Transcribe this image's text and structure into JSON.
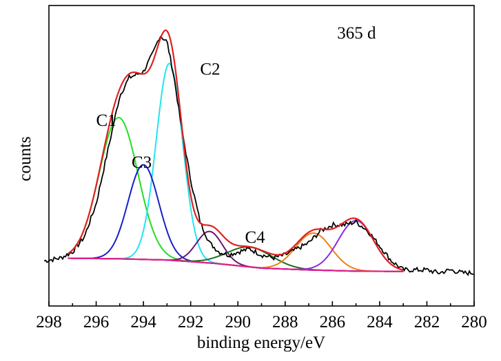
{
  "chart_data": {
    "type": "line",
    "title": "",
    "xlabel": "binding energy/eV",
    "ylabel": "counts",
    "xlim": [
      298,
      280
    ],
    "x_reversed": true,
    "ylim": [
      0,
      100
    ],
    "grid": false,
    "legend": "none",
    "x_ticks": [
      298,
      296,
      294,
      292,
      290,
      288,
      286,
      284,
      282,
      280
    ],
    "x_tick_labels": [
      "298",
      "296",
      "294",
      "292",
      "290",
      "288",
      "286",
      "284",
      "282",
      "280"
    ],
    "annotations": [
      {
        "text": "365 d",
        "x": 285.8,
        "y": 89
      },
      {
        "text": "C1",
        "x": 296.0,
        "y": 60
      },
      {
        "text": "C2",
        "x": 291.6,
        "y": 77
      },
      {
        "text": "C3",
        "x": 294.5,
        "y": 46
      },
      {
        "text": "C4",
        "x": 289.7,
        "y": 21
      }
    ],
    "background_line": {
      "color": "#e0208a",
      "points": [
        [
          297.2,
          15.9
        ],
        [
          295,
          15.7
        ],
        [
          293,
          15.3
        ],
        [
          291,
          14.2
        ],
        [
          289,
          12.6
        ],
        [
          287,
          12.0
        ],
        [
          285,
          11.6
        ],
        [
          283,
          11.5
        ]
      ]
    },
    "peaks": [
      {
        "name": "C1",
        "center": 295.05,
        "height": 47,
        "sigma": 0.82,
        "color": "#22dd22"
      },
      {
        "name": "C2",
        "center": 292.9,
        "height": 65.5,
        "sigma": 0.56,
        "color": "#22e4ee"
      },
      {
        "name": "C3",
        "center": 294.0,
        "height": 31.5,
        "sigma": 0.65,
        "color": "#1520c8"
      },
      {
        "name": "",
        "center": 291.2,
        "height": 10.5,
        "sigma": 0.55,
        "color": "#6a1470"
      },
      {
        "name": "C4",
        "center": 289.5,
        "height": 6.6,
        "sigma": 0.95,
        "color": "#1b6e1b"
      },
      {
        "name": "",
        "center": 286.8,
        "height": 12.3,
        "sigma": 0.75,
        "color": "#f07f10"
      },
      {
        "name": "",
        "center": 285.0,
        "height": 16.8,
        "sigma": 0.75,
        "color": "#8a2be2"
      }
    ],
    "fit_envelope": {
      "color": "#e02020"
    },
    "raw_data": {
      "color": "#000000",
      "x": [
        298.2,
        297.5,
        297.0,
        296.5,
        296.0,
        295.5,
        295.0,
        294.6,
        294.3,
        294.0,
        293.6,
        293.3,
        293.0,
        292.7,
        292.4,
        292.0,
        291.6,
        291.2,
        290.8,
        290.4,
        290.0,
        289.5,
        289.0,
        288.5,
        288.0,
        287.5,
        287.0,
        286.5,
        286.0,
        285.5,
        285.0,
        284.5,
        284.0,
        283.5,
        283.0,
        282.5,
        282.0,
        281.5,
        281.0,
        280.5,
        280.0
      ],
      "y": [
        15,
        16,
        18,
        23,
        34,
        52,
        70,
        76,
        77,
        78,
        84,
        90,
        88,
        76,
        60,
        42,
        28,
        21,
        18,
        17,
        18,
        19,
        17,
        16,
        17,
        19,
        21,
        25,
        27,
        27,
        28,
        25,
        20,
        15,
        12,
        12,
        12,
        11,
        12,
        11,
        11
      ]
    }
  }
}
